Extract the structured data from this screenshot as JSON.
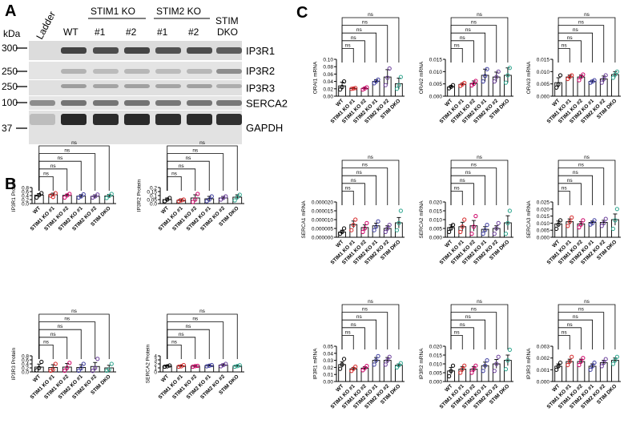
{
  "panel_labels": {
    "a": "A",
    "b": "B",
    "c": "C"
  },
  "blot": {
    "kda_label": "kDa",
    "ladder_label": "Ladder",
    "wt_label": "WT",
    "group1": "STIM1 KO",
    "group2": "STIM2 KO",
    "dko_line1": "STIM",
    "dko_line2": "DKO",
    "clone1": "#1",
    "clone2": "#2",
    "markers": [
      "300",
      "250",
      "250",
      "100",
      "37"
    ],
    "bands": [
      "IP3R1",
      "IP3R2",
      "IP3R3",
      "SERCA2",
      "GAPDH"
    ]
  },
  "ns_label": "ns",
  "groups": [
    "WT",
    "STIM1 KO #1",
    "STIM1 KO #2",
    "STIM2 KO #1",
    "STIM2 KO #2",
    "STIM DKO"
  ],
  "group_colors": [
    "#000000",
    "#d62728",
    "#cc0066",
    "#3b3b9e",
    "#6a3d9a",
    "#2ca58d"
  ],
  "chart_data": [
    {
      "type": "bar",
      "panel": "B",
      "ylabel": "IP3R1 Protein",
      "ylim": [
        0,
        0.8
      ],
      "yticks": [
        "0.0",
        "0.2",
        "0.4",
        "0.6",
        "0.8"
      ],
      "categories": [
        "WT",
        "STIM1 KO #1",
        "STIM1 KO #2",
        "STIM2 KO #1",
        "STIM2 KO #2",
        "STIM DKO"
      ],
      "values": [
        0.42,
        0.44,
        0.41,
        0.37,
        0.36,
        0.38
      ],
      "errors": [
        0.08,
        0.08,
        0.06,
        0.08,
        0.08,
        0.08
      ],
      "points": [
        [
          0.3,
          0.42,
          0.52
        ],
        [
          0.4,
          0.33,
          0.52
        ],
        [
          0.3,
          0.41,
          0.48
        ],
        [
          0.3,
          0.36,
          0.46
        ],
        [
          0.3,
          0.36,
          0.45
        ],
        [
          0.28,
          0.38,
          0.48
        ]
      ]
    },
    {
      "type": "bar",
      "panel": "B",
      "ylabel": "IP3R2 Protein",
      "ylim": [
        0,
        0.2
      ],
      "yticks": [
        "0.0",
        "0.05",
        "0.1",
        "0.15",
        "0.2"
      ],
      "categories": [
        "WT",
        "STIM1 KO #1",
        "STIM1 KO #2",
        "STIM2 KO #1",
        "STIM2 KO #2",
        "STIM DKO"
      ],
      "values": [
        0.05,
        0.04,
        0.07,
        0.06,
        0.07,
        0.08
      ],
      "errors": [
        0.02,
        0.02,
        0.04,
        0.03,
        0.02,
        0.03
      ],
      "points": [
        [
          0.03,
          0.05,
          0.07
        ],
        [
          0.03,
          0.04,
          0.05
        ],
        [
          0.02,
          0.05,
          0.12
        ],
        [
          0.03,
          0.05,
          0.09
        ],
        [
          0.05,
          0.07,
          0.09
        ],
        [
          0.04,
          0.08,
          0.11
        ]
      ]
    },
    {
      "type": "bar",
      "panel": "B",
      "ylabel": "IP3R3 Protein",
      "ylim": [
        0,
        0.8
      ],
      "yticks": [
        "0.0",
        "0.2",
        "0.4",
        "0.6",
        "0.8"
      ],
      "categories": [
        "WT",
        "STIM1 KO #1",
        "STIM1 KO #2",
        "STIM2 KO #1",
        "STIM2 KO #2",
        "STIM DKO"
      ],
      "values": [
        0.24,
        0.22,
        0.24,
        0.22,
        0.27,
        0.2
      ],
      "errors": [
        0.15,
        0.14,
        0.18,
        0.14,
        0.2,
        0.13
      ],
      "points": [
        [
          0.08,
          0.2,
          0.5
        ],
        [
          0.06,
          0.12,
          0.4
        ],
        [
          0.06,
          0.2,
          0.45
        ],
        [
          0.06,
          0.18,
          0.4
        ],
        [
          0.05,
          0.2,
          0.65
        ],
        [
          0.06,
          0.12,
          0.4
        ]
      ]
    },
    {
      "type": "bar",
      "panel": "B",
      "ylabel": "SERCA2 Protein",
      "ylim": [
        0,
        4
      ],
      "yticks": [
        "0",
        "1",
        "2",
        "3",
        "4"
      ],
      "categories": [
        "WT",
        "STIM1 KO #1",
        "STIM1 KO #2",
        "STIM2 KO #1",
        "STIM2 KO #2",
        "STIM DKO"
      ],
      "values": [
        1.45,
        1.45,
        1.42,
        1.55,
        1.7,
        1.45
      ],
      "errors": [
        0.15,
        0.2,
        0.15,
        0.2,
        0.3,
        0.2
      ],
      "points": [
        [
          1.3,
          1.4,
          1.6
        ],
        [
          1.3,
          1.4,
          1.7
        ],
        [
          1.3,
          1.45,
          1.5
        ],
        [
          1.4,
          1.55,
          1.7
        ],
        [
          1.4,
          1.7,
          2.0
        ],
        [
          1.3,
          1.45,
          1.65
        ]
      ]
    },
    {
      "type": "bar",
      "panel": "C",
      "ylabel": "ORAI1 mRNA",
      "ylim": [
        0,
        0.1
      ],
      "yticks": [
        "0.00",
        "0.02",
        "0.04",
        "0.06",
        "0.08",
        "0.10"
      ],
      "categories": [
        "WT",
        "STIM1 KO #1",
        "STIM1 KO #2",
        "STIM2 KO #1",
        "STIM2 KO #2",
        "STIM DKO"
      ],
      "values": [
        0.028,
        0.021,
        0.021,
        0.04,
        0.052,
        0.034
      ],
      "errors": [
        0.01,
        0.002,
        0.003,
        0.005,
        0.02,
        0.015
      ],
      "points": [
        [
          0.018,
          0.025,
          0.04
        ],
        [
          0.02,
          0.021,
          0.022
        ],
        [
          0.018,
          0.021,
          0.024
        ],
        [
          0.035,
          0.04,
          0.045
        ],
        [
          0.03,
          0.05,
          0.075
        ],
        [
          0.02,
          0.03,
          0.052
        ]
      ]
    },
    {
      "type": "bar",
      "panel": "C",
      "ylabel": "ORAI2 mRNA",
      "ylim": [
        0,
        0.015
      ],
      "yticks": [
        "0.000",
        "0.005",
        "0.010",
        "0.015"
      ],
      "categories": [
        "WT",
        "STIM1 KO #1",
        "STIM1 KO #2",
        "STIM2 KO #1",
        "STIM2 KO #2",
        "STIM DKO"
      ],
      "values": [
        0.0038,
        0.0048,
        0.0052,
        0.0085,
        0.0078,
        0.0085
      ],
      "errors": [
        0.0005,
        0.0005,
        0.001,
        0.0025,
        0.002,
        0.003
      ],
      "points": [
        [
          0.0032,
          0.0038,
          0.0045
        ],
        [
          0.0042,
          0.0048,
          0.0054
        ],
        [
          0.0044,
          0.005,
          0.0062
        ],
        [
          0.006,
          0.0082,
          0.011
        ],
        [
          0.006,
          0.0078,
          0.01
        ],
        [
          0.0055,
          0.0085,
          0.0115
        ]
      ]
    },
    {
      "type": "bar",
      "panel": "C",
      "ylabel": "ORAI3 mRNA",
      "ylim": [
        0,
        0.015
      ],
      "yticks": [
        "0.000",
        "0.005",
        "0.010",
        "0.015"
      ],
      "categories": [
        "WT",
        "STIM1 KO #1",
        "STIM1 KO #2",
        "STIM2 KO #1",
        "STIM2 KO #2",
        "STIM DKO"
      ],
      "values": [
        0.0055,
        0.0078,
        0.0078,
        0.006,
        0.007,
        0.0088
      ],
      "errors": [
        0.002,
        0.0008,
        0.0008,
        0.0005,
        0.0012,
        0.0012
      ],
      "points": [
        [
          0.0035,
          0.0048,
          0.0085
        ],
        [
          0.007,
          0.0078,
          0.0085
        ],
        [
          0.0065,
          0.0078,
          0.0088
        ],
        [
          0.0055,
          0.006,
          0.0065
        ],
        [
          0.0055,
          0.007,
          0.0085
        ],
        [
          0.0075,
          0.0088,
          0.01
        ]
      ]
    },
    {
      "type": "bar",
      "panel": "C",
      "ylabel": "SERCA1 mRNA",
      "ylim": [
        0,
        2e-05
      ],
      "yticks": [
        "0.000000",
        "0.000005",
        "0.000010",
        "0.000015",
        "0.000020"
      ],
      "categories": [
        "WT",
        "STIM1 KO #1",
        "STIM1 KO #2",
        "STIM2 KO #1",
        "STIM2 KO #2",
        "STIM DKO"
      ],
      "values": [
        3e-06,
        7.2e-06,
        5.5e-06,
        6.5e-06,
        5e-06,
        8.2e-06
      ],
      "errors": [
        1e-06,
        2e-06,
        1.5e-06,
        1.5e-06,
        1.5e-06,
        3e-06
      ],
      "points": [
        [
          2e-06,
          3e-06,
          5e-06
        ],
        [
          4e-06,
          7e-06,
          1e-05
        ],
        [
          3e-06,
          5e-06,
          8e-06
        ],
        [
          4e-06,
          6e-06,
          9e-06
        ],
        [
          3e-06,
          5e-06,
          7e-06
        ],
        [
          4e-06,
          8e-06,
          1.5e-05
        ]
      ]
    },
    {
      "type": "bar",
      "panel": "C",
      "ylabel": "SERCA2 mRNA",
      "ylim": [
        0,
        0.02
      ],
      "yticks": [
        "0.000",
        "0.005",
        "0.010",
        "0.015",
        "0.020"
      ],
      "categories": [
        "WT",
        "STIM1 KO #1",
        "STIM1 KO #2",
        "STIM2 KO #1",
        "STIM2 KO #2",
        "STIM DKO"
      ],
      "values": [
        0.0055,
        0.006,
        0.0065,
        0.0045,
        0.005,
        0.0082
      ],
      "errors": [
        0.0015,
        0.0025,
        0.003,
        0.0015,
        0.0015,
        0.004
      ],
      "points": [
        [
          0.003,
          0.005,
          0.007
        ],
        [
          0.003,
          0.006,
          0.01
        ],
        [
          0.002,
          0.006,
          0.012
        ],
        [
          0.002,
          0.004,
          0.007
        ],
        [
          0.002,
          0.005,
          0.008
        ],
        [
          0.002,
          0.008,
          0.015
        ]
      ]
    },
    {
      "type": "bar",
      "panel": "C",
      "ylabel": "SERCA3 mRNA",
      "ylim": [
        0,
        0.025
      ],
      "yticks": [
        "0.000",
        "0.005",
        "0.010",
        "0.015",
        "0.020",
        "0.025"
      ],
      "categories": [
        "WT",
        "STIM1 KO #1",
        "STIM1 KO #2",
        "STIM2 KO #1",
        "STIM2 KO #2",
        "STIM DKO"
      ],
      "values": [
        0.0095,
        0.011,
        0.0095,
        0.0105,
        0.0105,
        0.0125
      ],
      "errors": [
        0.002,
        0.002,
        0.0015,
        0.001,
        0.0015,
        0.004
      ],
      "points": [
        [
          0.006,
          0.009,
          0.012
        ],
        [
          0.008,
          0.011,
          0.014
        ],
        [
          0.007,
          0.009,
          0.012
        ],
        [
          0.009,
          0.01,
          0.012
        ],
        [
          0.008,
          0.01,
          0.013
        ],
        [
          0.006,
          0.012,
          0.02
        ]
      ]
    },
    {
      "type": "bar",
      "panel": "C",
      "ylabel": "IP3R1 mRNA",
      "ylim": [
        0,
        0.05
      ],
      "yticks": [
        "0.00",
        "0.01",
        "0.02",
        "0.03",
        "0.04",
        "0.05"
      ],
      "categories": [
        "WT",
        "STIM1 KO #1",
        "STIM1 KO #2",
        "STIM2 KO #1",
        "STIM2 KO #2",
        "STIM DKO"
      ],
      "values": [
        0.024,
        0.018,
        0.019,
        0.03,
        0.03,
        0.023
      ],
      "errors": [
        0.004,
        0.002,
        0.002,
        0.004,
        0.004,
        0.002
      ],
      "points": [
        [
          0.018,
          0.024,
          0.032
        ],
        [
          0.015,
          0.018,
          0.021
        ],
        [
          0.016,
          0.019,
          0.022
        ],
        [
          0.024,
          0.03,
          0.036
        ],
        [
          0.024,
          0.03,
          0.035
        ],
        [
          0.02,
          0.023,
          0.026
        ]
      ]
    },
    {
      "type": "bar",
      "panel": "C",
      "ylabel": "IP3R2 mRNA",
      "ylim": [
        0,
        0.02
      ],
      "yticks": [
        "0.000",
        "0.005",
        "0.010",
        "0.015",
        "0.020"
      ],
      "categories": [
        "WT",
        "STIM1 KO #1",
        "STIM1 KO #2",
        "STIM2 KO #1",
        "STIM2 KO #2",
        "STIM DKO"
      ],
      "values": [
        0.006,
        0.007,
        0.007,
        0.009,
        0.01,
        0.012
      ],
      "errors": [
        0.002,
        0.0015,
        0.0015,
        0.002,
        0.0025,
        0.003
      ],
      "points": [
        [
          0.003,
          0.006,
          0.009
        ],
        [
          0.005,
          0.007,
          0.009
        ],
        [
          0.005,
          0.007,
          0.009
        ],
        [
          0.006,
          0.009,
          0.012
        ],
        [
          0.006,
          0.01,
          0.014
        ],
        [
          0.007,
          0.012,
          0.018
        ]
      ]
    },
    {
      "type": "bar",
      "panel": "C",
      "ylabel": "IP3R3 mRNA",
      "ylim": [
        0,
        0.003
      ],
      "yticks": [
        "0.000",
        "0.001",
        "0.002",
        "0.003"
      ],
      "categories": [
        "WT",
        "STIM1 KO #1",
        "STIM1 KO #2",
        "STIM2 KO #1",
        "STIM2 KO #2",
        "STIM DKO"
      ],
      "values": [
        0.0013,
        0.0017,
        0.0017,
        0.0013,
        0.0016,
        0.0018
      ],
      "errors": [
        0.0002,
        0.0002,
        0.0002,
        0.0002,
        0.0002,
        0.0002
      ],
      "points": [
        [
          0.001,
          0.0013,
          0.0016
        ],
        [
          0.0014,
          0.0017,
          0.0021
        ],
        [
          0.0014,
          0.0017,
          0.002
        ],
        [
          0.001,
          0.0013,
          0.0016
        ],
        [
          0.0013,
          0.0016,
          0.0019
        ],
        [
          0.0015,
          0.0018,
          0.0021
        ]
      ]
    }
  ]
}
